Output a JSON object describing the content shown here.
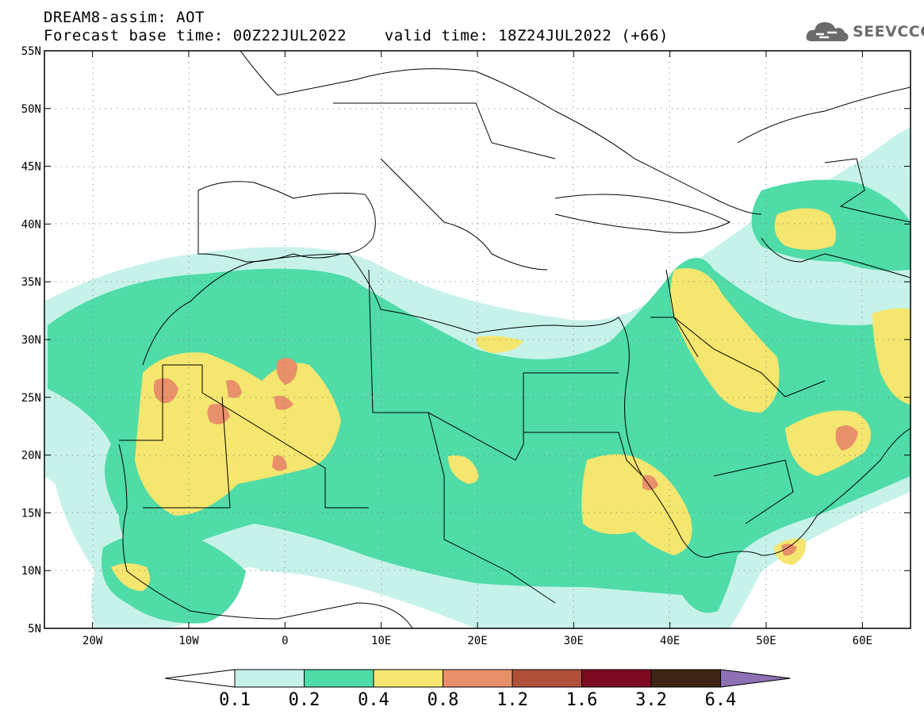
{
  "header": {
    "line1": "DREAM8-assim: AOT",
    "line2": "Forecast base time: 00Z22JUL2022    valid time: 18Z24JUL2022 (+66)"
  },
  "logo": {
    "text": "SEEVCCC",
    "icon": "cloud-icon"
  },
  "map": {
    "projection": "lat-lon",
    "lon_range": [
      -25,
      65
    ],
    "lat_range": [
      5,
      55
    ],
    "y_ticks": [
      "55N",
      "50N",
      "45N",
      "40N",
      "35N",
      "30N",
      "25N",
      "20N",
      "15N",
      "10N",
      "5N"
    ],
    "x_ticks": [
      "20W",
      "10W",
      "0",
      "10E",
      "20E",
      "30E",
      "40E",
      "50E",
      "60E"
    ],
    "grid": true
  },
  "colorbar": {
    "levels": [
      "0.1",
      "0.2",
      "0.4",
      "0.8",
      "1.2",
      "1.6",
      "3.2",
      "6.4"
    ],
    "colors": [
      "#ffffff",
      "#c6f2ea",
      "#4fdca7",
      "#f5e66f",
      "#e8906a",
      "#b0503a",
      "#7d0a23",
      "#3d2414",
      "#8e70b4"
    ],
    "extend": "both"
  }
}
